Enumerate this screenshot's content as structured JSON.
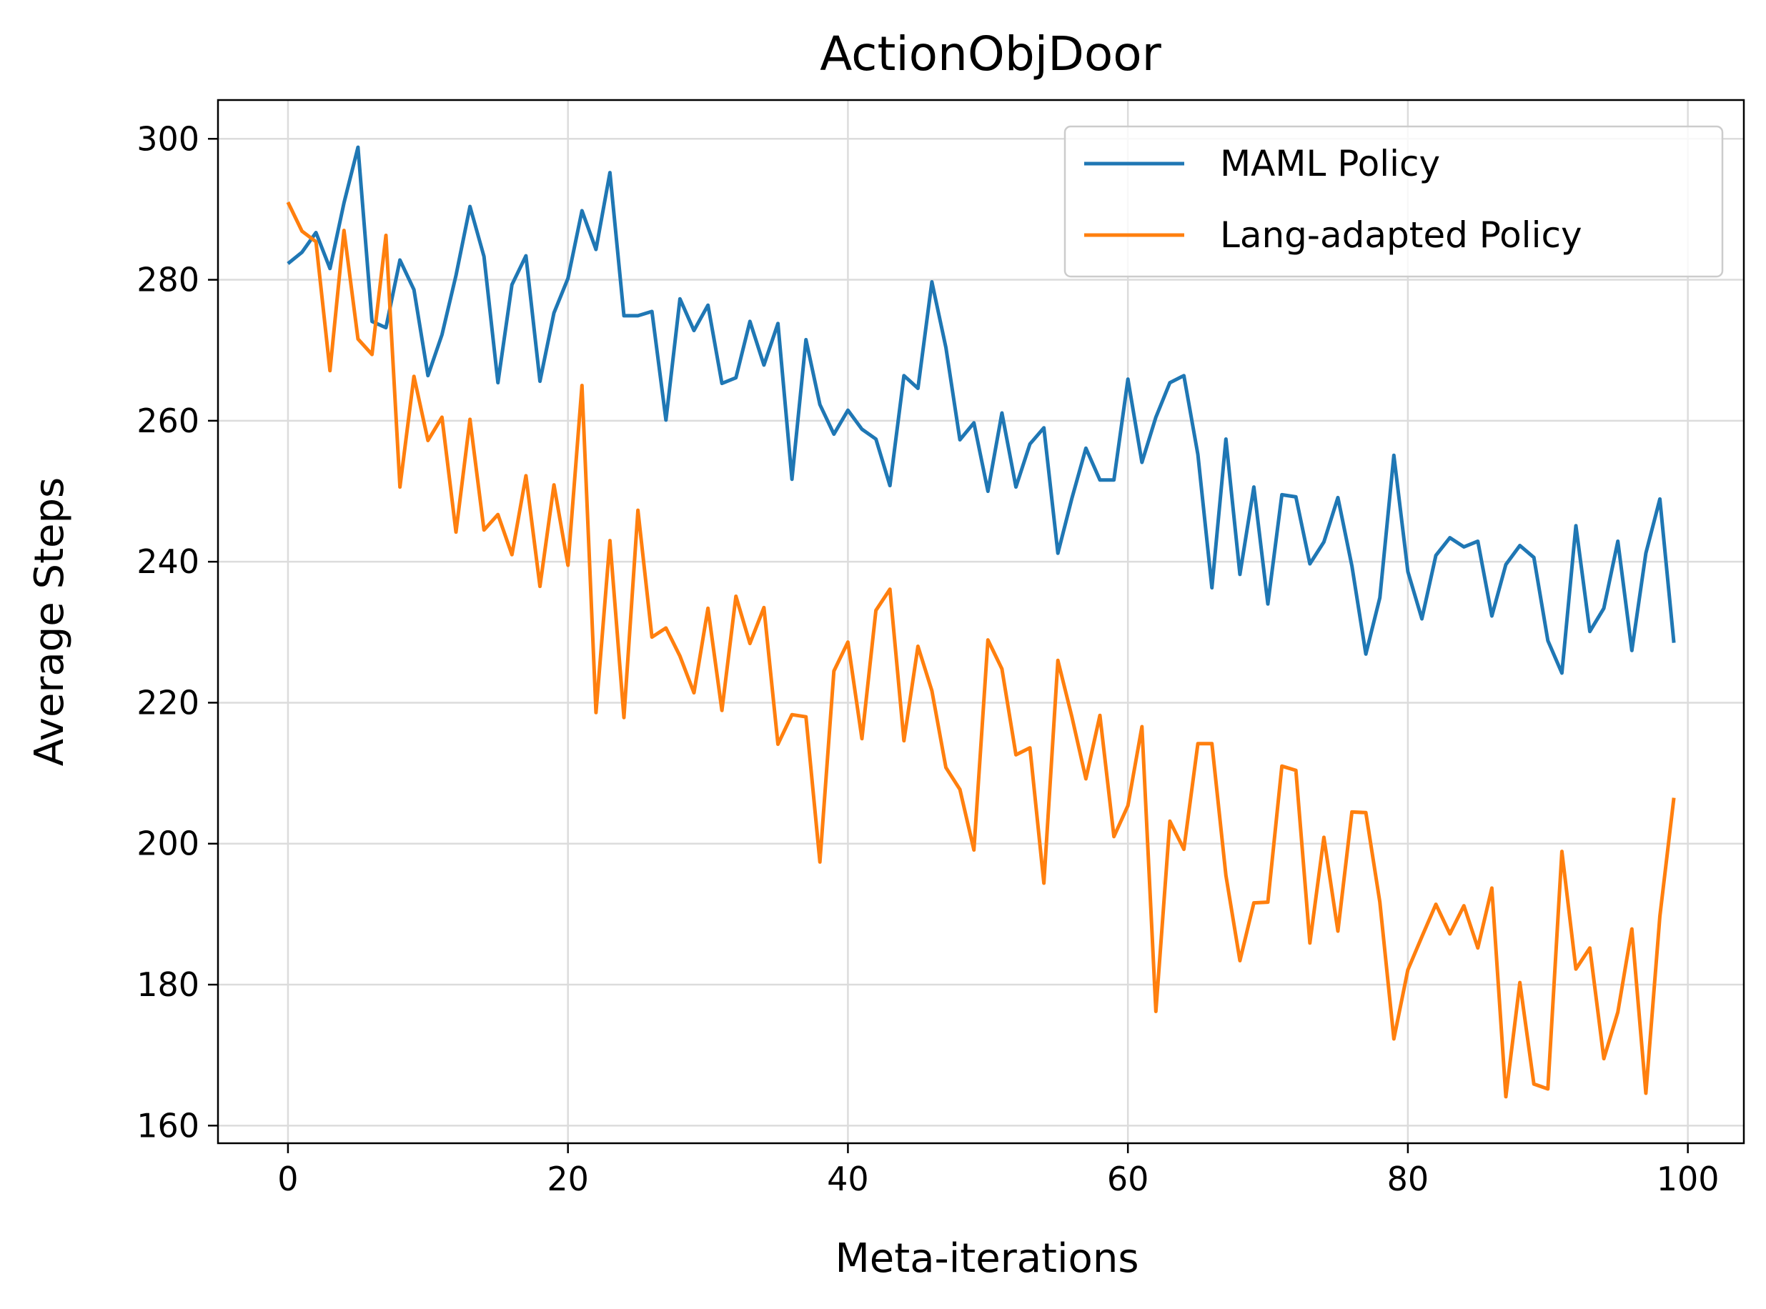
{
  "chart_data": {
    "type": "line",
    "title": "ActionObjDoor",
    "xlabel": "Meta-iterations",
    "ylabel": "Average Steps",
    "xlim": [
      -5,
      104
    ],
    "ylim": [
      157.5,
      305.5
    ],
    "xticks": [
      0,
      20,
      40,
      60,
      80,
      100
    ],
    "yticks": [
      160,
      180,
      200,
      220,
      240,
      260,
      280,
      300
    ],
    "grid": true,
    "legend_position": "top-right",
    "series": [
      {
        "name": "MAML Policy",
        "color": "#1f77b4",
        "values": [
          282.3,
          283.9,
          286.7,
          281.6,
          290.9,
          298.8,
          274.1,
          273.2,
          282.8,
          278.6,
          266.4,
          272.2,
          280.6,
          290.4,
          283.3,
          265.4,
          279.3,
          283.4,
          265.6,
          275.3,
          280.2,
          289.8,
          284.3,
          295.2,
          274.9,
          274.9,
          275.5,
          260.1,
          277.3,
          272.8,
          276.4,
          265.3,
          266.1,
          274.1,
          267.9,
          273.8,
          251.7,
          271.5,
          262.3,
          258.1,
          261.5,
          258.8,
          257.4,
          250.8,
          266.4,
          264.6,
          279.7,
          270.4,
          257.3,
          259.7,
          250.0,
          261.1,
          250.6,
          256.7,
          259.0,
          241.2,
          249.0,
          256.1,
          251.6,
          251.6,
          265.9,
          254.1,
          260.5,
          265.4,
          266.4,
          255.2,
          236.3,
          257.4,
          238.2,
          250.6,
          234.0,
          249.5,
          249.2,
          239.7,
          242.8,
          249.1,
          239.4,
          226.9,
          234.9,
          255.1,
          238.6,
          231.9,
          240.9,
          243.4,
          242.1,
          242.9,
          232.3,
          239.6,
          242.3,
          240.6,
          228.8,
          224.2,
          245.1,
          230.1,
          233.4,
          242.9,
          227.4,
          241.2,
          248.9,
          228.5
        ]
      },
      {
        "name": "Lang-adapted Policy",
        "color": "#ff7f0e",
        "values": [
          291.0,
          286.9,
          285.4,
          267.1,
          287.0,
          271.6,
          269.4,
          286.3,
          250.6,
          266.3,
          257.2,
          260.5,
          244.2,
          260.2,
          244.5,
          246.7,
          241.0,
          252.2,
          236.5,
          250.9,
          239.5,
          265.0,
          218.6,
          243.0,
          217.9,
          247.3,
          229.3,
          230.6,
          226.6,
          221.4,
          233.4,
          218.9,
          235.1,
          228.4,
          233.5,
          214.1,
          218.3,
          218.0,
          197.4,
          224.5,
          228.6,
          214.9,
          233.1,
          236.1,
          214.6,
          228.0,
          221.7,
          210.8,
          207.7,
          199.1,
          228.9,
          224.8,
          212.6,
          213.6,
          194.4,
          226.0,
          218.0,
          209.2,
          218.2,
          201.0,
          205.4,
          216.6,
          176.2,
          203.2,
          199.2,
          214.2,
          214.2,
          195.5,
          183.4,
          191.6,
          191.7,
          211.0,
          210.4,
          185.9,
          200.9,
          187.6,
          204.5,
          204.4,
          191.7,
          172.3,
          182.1,
          186.8,
          191.4,
          187.2,
          191.2,
          185.2,
          193.7,
          164.1,
          180.3,
          165.9,
          165.2,
          198.9,
          182.2,
          185.2,
          169.5,
          176.1,
          187.9,
          164.6,
          189.7,
          206.5
        ]
      }
    ]
  }
}
